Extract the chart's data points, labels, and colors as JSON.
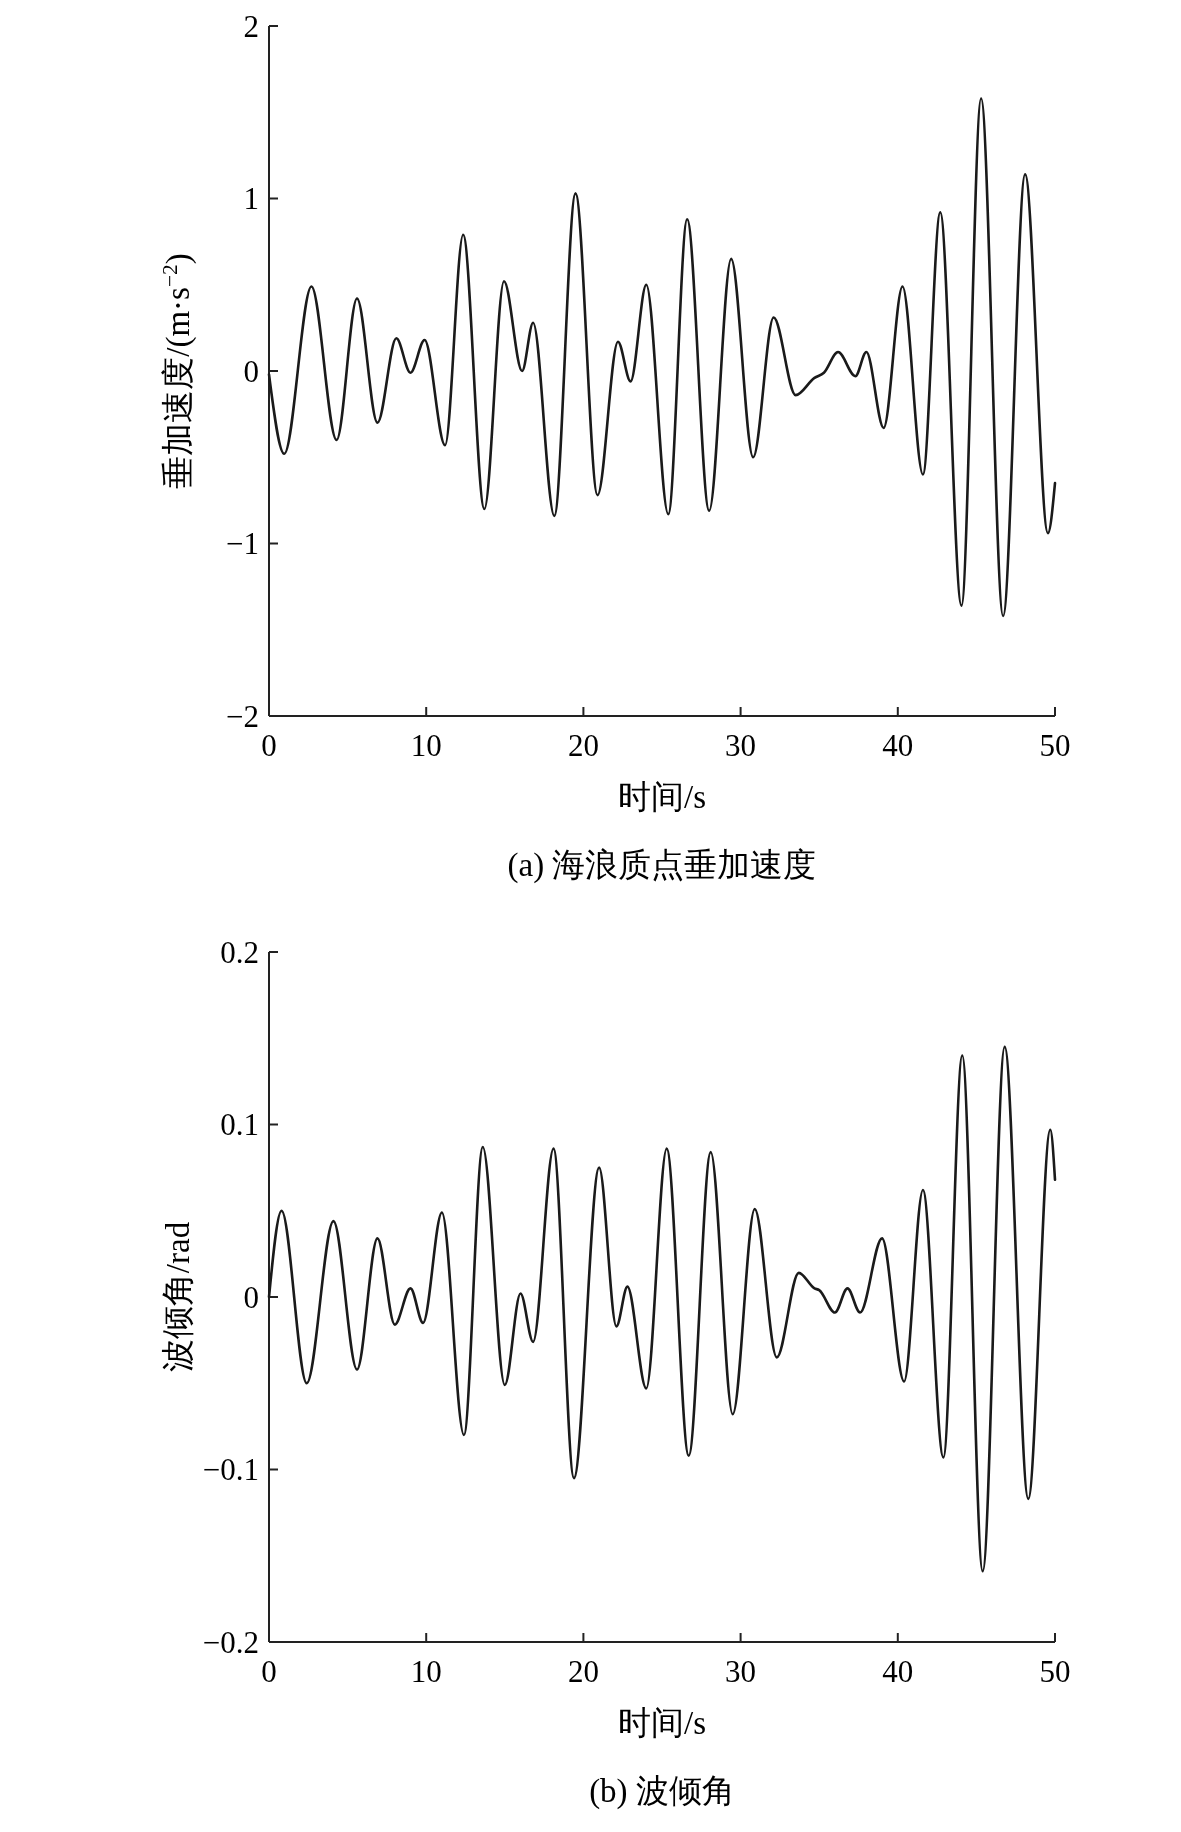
{
  "chart_data": [
    {
      "type": "line",
      "xlabel": "时间/s",
      "ylabel": "垂加速度/(m·s$^{−2}$)",
      "annotations": [
        "(a) 海浪质点垂加速度"
      ],
      "xlim": [
        0,
        50
      ],
      "xticks": [
        0,
        10,
        20,
        30,
        40,
        50
      ],
      "ylim": [
        -2,
        2
      ],
      "yticks": [
        {
          "value": -2,
          "label": "−2"
        },
        {
          "value": -1,
          "label": "−1"
        },
        0,
        1,
        2
      ],
      "grid": false,
      "marker": "none",
      "line_style": "solid",
      "series": [
        {
          "color": "#1a1a1a",
          "x": [
            0,
            0.97,
            2.7,
            4.3,
            5.6,
            6.9,
            8.1,
            9.0,
            9.9,
            11.2,
            12.35,
            13.7,
            14.95,
            16.1,
            16.8,
            18.15,
            19.5,
            20.9,
            22.2,
            23.0,
            24.0,
            25.4,
            26.6,
            28.0,
            29.4,
            30.8,
            32.1,
            33.5,
            34.7,
            35.3,
            36.2,
            37.3,
            38.0,
            39.1,
            40.3,
            41.6,
            42.7,
            44.05,
            45.3,
            46.7,
            48.1,
            49.55,
            50
          ],
          "values": [
            -0.02,
            -0.48,
            0.49,
            -0.4,
            0.42,
            -0.3,
            0.19,
            -0.01,
            0.18,
            -0.43,
            0.79,
            -0.8,
            0.52,
            0.0,
            0.28,
            -0.84,
            1.03,
            -0.72,
            0.17,
            -0.06,
            0.5,
            -0.83,
            0.88,
            -0.81,
            0.65,
            -0.5,
            0.31,
            -0.14,
            -0.04,
            -0.01,
            0.11,
            -0.03,
            0.11,
            -0.33,
            0.49,
            -0.6,
            0.92,
            -1.36,
            1.58,
            -1.42,
            1.14,
            -0.94,
            -0.65
          ]
        }
      ]
    },
    {
      "type": "line",
      "xlabel": "时间/s",
      "ylabel": "波倾角/rad",
      "annotations": [
        "(b) 波倾角"
      ],
      "xlim": [
        0,
        50
      ],
      "xticks": [
        0,
        10,
        20,
        30,
        40,
        50
      ],
      "ylim": [
        -0.2,
        0.2
      ],
      "yticks": [
        {
          "value": -0.2,
          "label": "−0.2"
        },
        {
          "value": -0.1,
          "label": "−0.1"
        },
        0,
        0.1,
        0.2
      ],
      "grid": false,
      "marker": "none",
      "line_style": "solid",
      "series": [
        {
          "color": "#1a1a1a",
          "x": [
            0,
            0.8,
            2.4,
            4.1,
            5.6,
            6.9,
            8.0,
            9.0,
            9.8,
            11.0,
            12.4,
            13.6,
            15.0,
            16.0,
            16.8,
            18.1,
            19.4,
            21.0,
            22.1,
            22.8,
            24.0,
            25.3,
            26.7,
            28.1,
            29.5,
            30.9,
            32.3,
            33.7,
            34.7,
            35.0,
            36.0,
            36.8,
            37.6,
            39.0,
            40.4,
            41.6,
            42.9,
            44.1,
            45.4,
            46.8,
            48.3,
            49.7,
            50
          ],
          "values": [
            0.0,
            0.05,
            -0.05,
            0.044,
            -0.042,
            0.034,
            -0.016,
            0.005,
            -0.015,
            0.049,
            -0.08,
            0.087,
            -0.051,
            0.002,
            -0.026,
            0.086,
            -0.105,
            0.075,
            -0.017,
            0.006,
            -0.053,
            0.086,
            -0.092,
            0.084,
            -0.068,
            0.051,
            -0.035,
            0.014,
            0.005,
            0.004,
            -0.009,
            0.005,
            -0.009,
            0.034,
            -0.049,
            0.062,
            -0.093,
            0.14,
            -0.159,
            0.145,
            -0.117,
            0.097,
            0.068
          ]
        }
      ]
    }
  ]
}
